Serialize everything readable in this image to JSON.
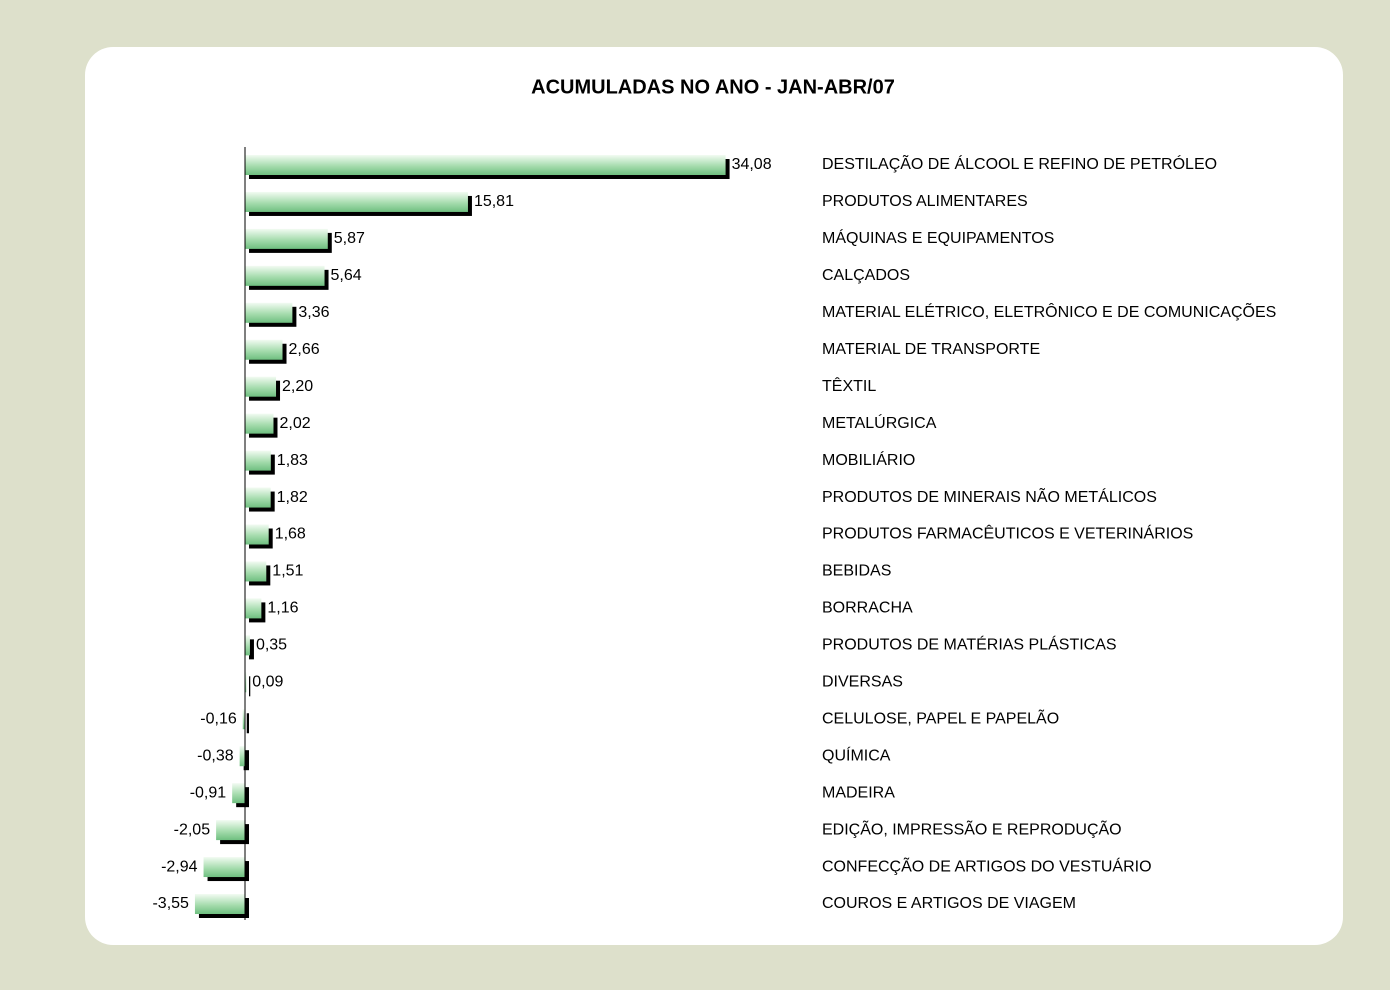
{
  "chart_data": {
    "type": "bar",
    "orientation": "horizontal",
    "title": "ACUMULADAS NO ANO -  JAN-ABR/07",
    "categories": [
      "DESTILAÇÃO DE ÁLCOOL E REFINO DE PETRÓLEO",
      "PRODUTOS ALIMENTARES",
      "MÁQUINAS E EQUIPAMENTOS",
      "CALÇADOS",
      "MATERIAL ELÉTRICO, ELETRÔNICO E DE COMUNICAÇÕES",
      "MATERIAL DE TRANSPORTE",
      "TÊXTIL",
      "METALÚRGICA",
      "MOBILIÁRIO",
      "PRODUTOS DE MINERAIS NÃO METÁLICOS",
      "PRODUTOS FARMACÊUTICOS E VETERINÁRIOS",
      "BEBIDAS",
      "BORRACHA",
      "PRODUTOS DE MATÉRIAS PLÁSTICAS",
      "DIVERSAS",
      "CELULOSE, PAPEL E PAPELÃO",
      "QUÍMICA",
      "MADEIRA",
      "EDIÇÃO, IMPRESSÃO E REPRODUÇÃO",
      "CONFECÇÃO DE ARTIGOS DO VESTUÁRIO",
      "COUROS E ARTIGOS DE VIAGEM"
    ],
    "values": [
      34.08,
      15.81,
      5.87,
      5.64,
      3.36,
      2.66,
      2.2,
      2.02,
      1.83,
      1.82,
      1.68,
      1.51,
      1.16,
      0.35,
      0.09,
      -0.16,
      -0.38,
      -0.91,
      -2.05,
      -2.94,
      -3.55
    ],
    "value_labels": [
      "34,08",
      "15,81",
      "5,87",
      "5,64",
      "3,36",
      "2,66",
      "2,20",
      "2,02",
      "1,83",
      "1,82",
      "1,68",
      "1,51",
      "1,16",
      "0,35",
      "0,09",
      "-0,16",
      "-0,38",
      "-0,91",
      "-2,05",
      "-2,94",
      "-3,55"
    ],
    "color": "#a6dcae",
    "xlim": [
      -4,
      34.5
    ]
  }
}
